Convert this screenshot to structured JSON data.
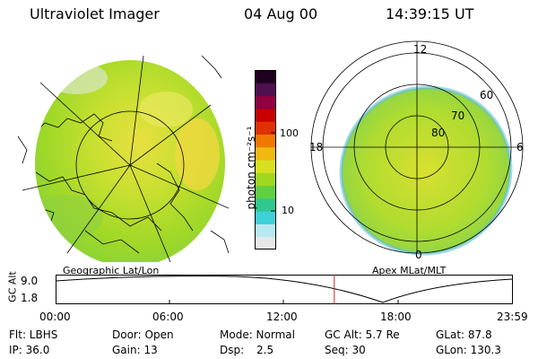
{
  "header": {
    "title": "Ultraviolet Imager",
    "date": "04 Aug 00",
    "time": "14:39:15 UT"
  },
  "colorbar": {
    "unit_label": "photon cm⁻²s⁻¹",
    "tick_high": "100",
    "tick_low": "10",
    "colors": [
      "#e8e8e8",
      "#b8e8f0",
      "#40d0d8",
      "#30c890",
      "#60d040",
      "#a0d820",
      "#d8e020",
      "#f0b810",
      "#f07800",
      "#e03000",
      "#c80000",
      "#900040",
      "#501050",
      "#200020"
    ]
  },
  "geo_panel": {
    "label": "Geographic Lat/Lon"
  },
  "polar_panel": {
    "label": "Apex MLat/MLT",
    "lat_labels": [
      "80",
      "70",
      "60"
    ],
    "mlt_labels": {
      "top": "12",
      "left": "18",
      "right": "6",
      "bottom": "0"
    }
  },
  "orbit_plot": {
    "ylabel": "GC Alt",
    "y_ticks": [
      "9.0",
      "1.8"
    ],
    "x_ticks": [
      "00:00",
      "06:00",
      "12:00",
      "18:00",
      "23:59"
    ],
    "current_time_fraction": 0.6106
  },
  "info": {
    "flt": "Flt: LBHS",
    "ip": "IP: 36.0",
    "door": "Door: Open",
    "gain": "Gain: 13",
    "mode": "Mode: Normal",
    "dsp_label": "Dsp:",
    "dsp_value": "2.5",
    "gc_alt": "GC Alt: 5.7 Re",
    "seq": "Seq: 30",
    "glat": "GLat: 87.8",
    "glon": "GLon: 130.3"
  }
}
